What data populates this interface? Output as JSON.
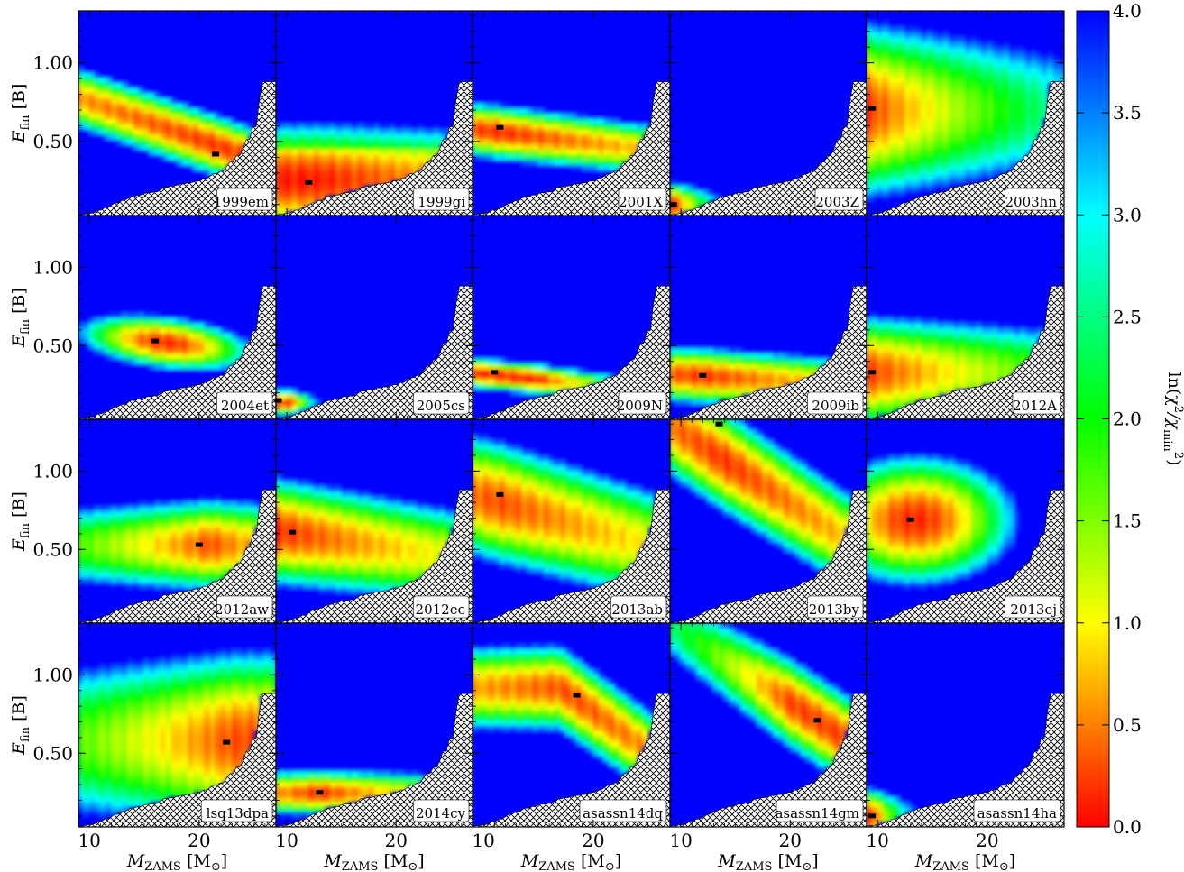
{
  "chart_data": {
    "type": "heatmap",
    "layout": {
      "rows": 4,
      "cols": 5
    },
    "xlabel": {
      "main": "M",
      "sub": "ZAMS",
      "unit": "[M",
      "unit_sub": "⊙",
      "unit_close": "]"
    },
    "ylabel": {
      "main": "E",
      "sub": "fin",
      "unit": "[B]"
    },
    "xlim": [
      9.0,
      27.0
    ],
    "ylim": [
      0.03,
      1.33
    ],
    "xticks": [
      {
        "value": 10,
        "label": "10"
      },
      {
        "value": 20,
        "label": "20"
      }
    ],
    "yticks": [
      {
        "value": 0.5,
        "label": "0.50"
      },
      {
        "value": 1.0,
        "label": "1.00"
      }
    ],
    "colorbar": {
      "label_main": "ln(χ",
      "label_sup": "2",
      "label_div": "/χ",
      "label_sub": "min",
      "label_sup2": "2",
      "label_close": ")",
      "range": [
        0.0,
        4.0
      ],
      "ticks": [
        "0.0",
        "0.5",
        "1.0",
        "1.5",
        "2.0",
        "2.5",
        "3.0",
        "3.5",
        "4.0"
      ],
      "colormap": "jet_r"
    },
    "excluded_region": "hatched",
    "panels": [
      {
        "name": "1999em",
        "best_fit": [
          21.5,
          0.42
        ]
      },
      {
        "name": "1999gi",
        "best_fit": [
          12.0,
          0.24
        ]
      },
      {
        "name": "2001X",
        "best_fit": [
          11.5,
          0.59
        ]
      },
      {
        "name": "2003Z",
        "best_fit": [
          9.3,
          0.1
        ]
      },
      {
        "name": "2003hn",
        "best_fit": [
          9.5,
          0.71
        ]
      },
      {
        "name": "2004et",
        "best_fit": [
          16.0,
          0.53
        ]
      },
      {
        "name": "2005cs",
        "best_fit": [
          9.2,
          0.15
        ]
      },
      {
        "name": "2009N",
        "best_fit": [
          11.0,
          0.33
        ]
      },
      {
        "name": "2009ib",
        "best_fit": [
          12.0,
          0.31
        ]
      },
      {
        "name": "2012A",
        "best_fit": [
          9.5,
          0.33
        ]
      },
      {
        "name": "2012aw",
        "best_fit": [
          20.0,
          0.53
        ]
      },
      {
        "name": "2012ec",
        "best_fit": [
          10.5,
          0.61
        ]
      },
      {
        "name": "2013ab",
        "best_fit": [
          11.5,
          0.85
        ]
      },
      {
        "name": "2013by",
        "best_fit": [
          13.5,
          1.3
        ]
      },
      {
        "name": "2013ej",
        "best_fit": [
          13.0,
          0.69
        ]
      },
      {
        "name": "lsq13dpa",
        "best_fit": [
          22.5,
          0.57
        ]
      },
      {
        "name": "2014cy",
        "best_fit": [
          13.0,
          0.25
        ]
      },
      {
        "name": "asassn14dq",
        "best_fit": [
          18.5,
          0.87
        ]
      },
      {
        "name": "asassn14gm",
        "best_fit": [
          22.5,
          0.71
        ]
      },
      {
        "name": "asassn14ha",
        "best_fit": [
          9.5,
          0.1
        ]
      }
    ]
  }
}
